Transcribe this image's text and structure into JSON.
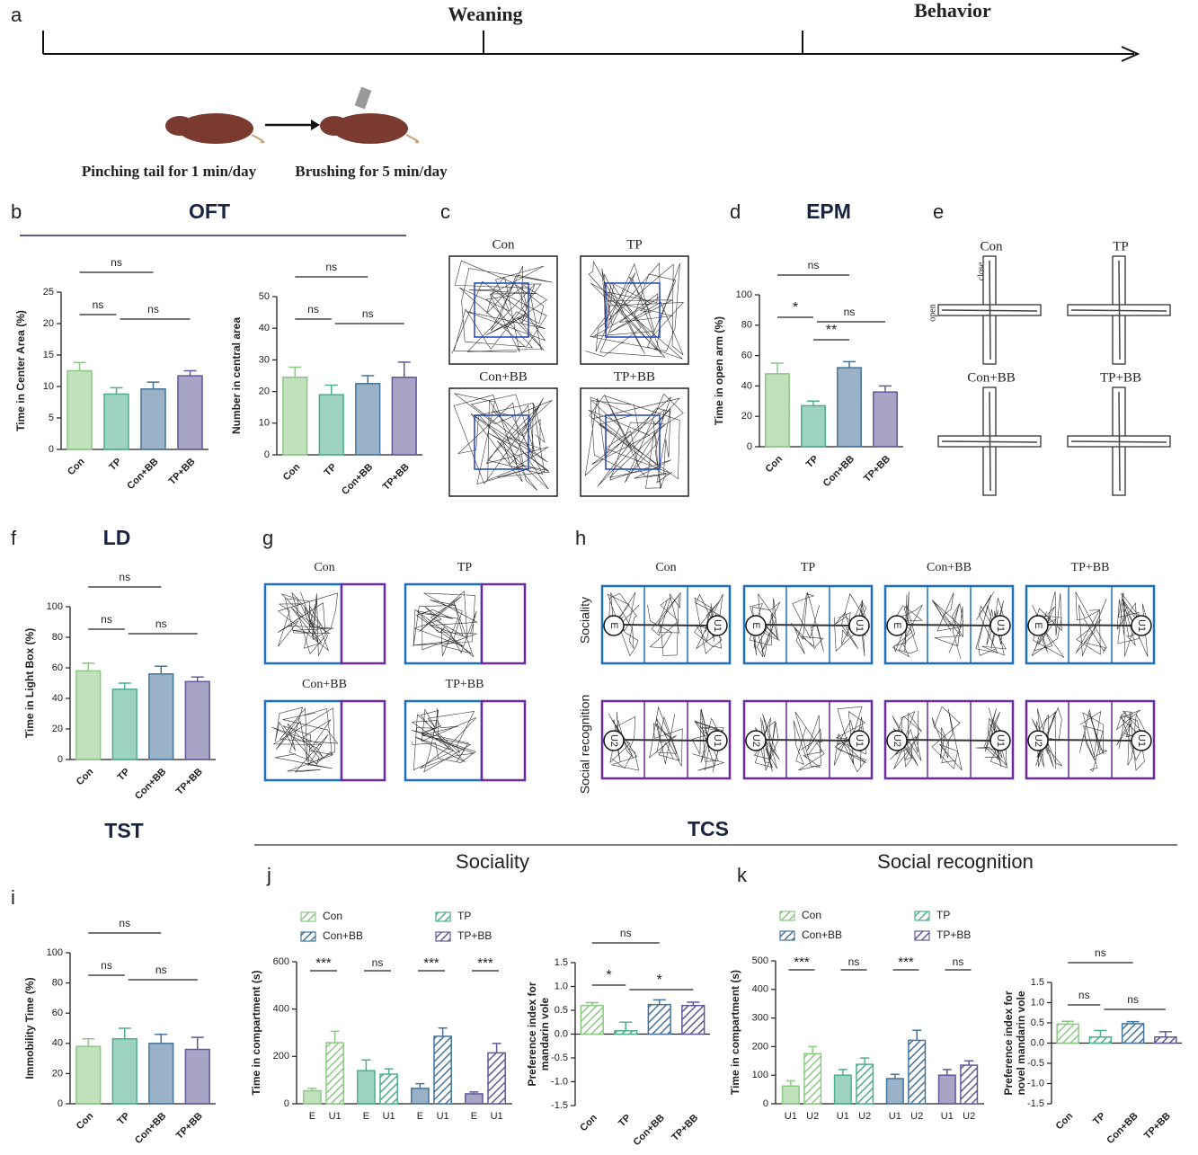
{
  "figure": {
    "panels": [
      "a",
      "b",
      "c",
      "d",
      "e",
      "f",
      "g",
      "h",
      "i",
      "j",
      "k"
    ],
    "timeline": {
      "labels": [
        "Weaning",
        "Behavior"
      ],
      "steps": [
        "Pinching tail for 1 min/day",
        "Brushing for 5 min/day"
      ]
    },
    "sections": {
      "oft": "OFT",
      "epm": "EPM",
      "ld": "LD",
      "tst": "TST",
      "tcs": "TCS",
      "sociality": "Sociality",
      "social_recognition": "Social recognition"
    },
    "groups": [
      "Con",
      "TP",
      "Con+BB",
      "TP+BB"
    ],
    "arms": {
      "close": "close",
      "open": "open"
    },
    "chambers": {
      "e": "E",
      "u1": "U1",
      "u2": "U2"
    }
  },
  "chart_data": [
    {
      "type": "bar",
      "ylabel": [
        "Time in Center Area (%)"
      ],
      "categories": [
        "Con",
        "TP",
        "Con+BB",
        "TP+BB"
      ],
      "values": [
        12.5,
        8.8,
        9.6,
        11.7
      ],
      "errors": [
        1.3,
        1.0,
        1.1,
        0.8
      ],
      "colors": [
        "#8cc884",
        "#4fae8e",
        "#46739a",
        "#5e5a98"
      ],
      "ylim": [
        0,
        25
      ],
      "yticks": [
        0,
        5,
        10,
        15,
        20,
        25
      ],
      "brackets": [
        {
          "text": "ns",
          "from": 0,
          "to": 2
        },
        {
          "text": "ns",
          "from": 0,
          "to": 1
        },
        {
          "text": "ns",
          "from": 1,
          "to": 3
        }
      ]
    },
    {
      "type": "bar",
      "ylabel": [
        "Number in central area"
      ],
      "categories": [
        "Con",
        "TP",
        "Con+BB",
        "TP+BB"
      ],
      "values": [
        24.5,
        19,
        22.5,
        24.5
      ],
      "errors": [
        3.2,
        3.0,
        2.5,
        4.8
      ],
      "colors": [
        "#8cc884",
        "#4fae8e",
        "#46739a",
        "#5e5a98"
      ],
      "ylim": [
        0,
        50
      ],
      "yticks": [
        0,
        10,
        20,
        30,
        40,
        50
      ],
      "brackets": [
        {
          "text": "ns",
          "from": 0,
          "to": 2
        },
        {
          "text": "ns",
          "from": 0,
          "to": 1
        },
        {
          "text": "ns",
          "from": 1,
          "to": 3
        }
      ]
    },
    {
      "type": "bar",
      "ylabel": [
        "Time in open arm (%)"
      ],
      "categories": [
        "Con",
        "TP",
        "Con+BB",
        "TP+BB"
      ],
      "values": [
        48,
        27,
        52,
        36
      ],
      "errors": [
        7,
        3,
        4,
        4
      ],
      "colors": [
        "#8cc884",
        "#4fae8e",
        "#46739a",
        "#5e5a98"
      ],
      "ylim": [
        0,
        100
      ],
      "yticks": [
        0,
        20,
        40,
        60,
        80,
        100
      ],
      "brackets": [
        {
          "text": "ns",
          "from": 0,
          "to": 2
        },
        {
          "text": "*",
          "from": 0,
          "to": 1
        },
        {
          "text": "ns",
          "from": 1,
          "to": 3
        },
        {
          "text": "**",
          "from": 1,
          "to": 2
        }
      ]
    },
    {
      "type": "bar",
      "ylabel": [
        "Time in Light Box (%)"
      ],
      "categories": [
        "Con",
        "TP",
        "Con+BB",
        "TP+BB"
      ],
      "values": [
        58,
        46,
        56,
        51
      ],
      "errors": [
        5,
        4,
        5,
        3
      ],
      "colors": [
        "#8cc884",
        "#4fae8e",
        "#46739a",
        "#5e5a98"
      ],
      "ylim": [
        0,
        100
      ],
      "yticks": [
        0,
        20,
        40,
        60,
        80,
        100
      ],
      "brackets": [
        {
          "text": "ns",
          "from": 0,
          "to": 2
        },
        {
          "text": "ns",
          "from": 0,
          "to": 1
        },
        {
          "text": "ns",
          "from": 1,
          "to": 3
        }
      ]
    },
    {
      "type": "bar",
      "ylabel": [
        "Immobility Time (%)"
      ],
      "categories": [
        "Con",
        "TP",
        "Con+BB",
        "TP+BB"
      ],
      "values": [
        38,
        43,
        40,
        36
      ],
      "errors": [
        5,
        7,
        6,
        8
      ],
      "colors": [
        "#8cc884",
        "#4fae8e",
        "#46739a",
        "#5e5a98"
      ],
      "ylim": [
        0,
        100
      ],
      "yticks": [
        0,
        20,
        40,
        60,
        80,
        100
      ],
      "brackets": [
        {
          "text": "ns",
          "from": 0,
          "to": 2
        },
        {
          "text": "ns",
          "from": 0,
          "to": 1
        },
        {
          "text": "ns",
          "from": 1,
          "to": 3
        }
      ]
    },
    {
      "type": "grouped_bar",
      "ylabel": [
        "Time in compartment (s)"
      ],
      "categories": [
        "E",
        "U1"
      ],
      "series": [
        {
          "name": "Con",
          "color": "#8cc884",
          "values": [
            55,
            258
          ],
          "errors": [
            10,
            48
          ],
          "annotation": "***"
        },
        {
          "name": "TP",
          "color": "#4fae8e",
          "values": [
            140,
            125
          ],
          "errors": [
            45,
            22
          ],
          "annotation": "ns"
        },
        {
          "name": "Con+BB",
          "color": "#46739a",
          "values": [
            65,
            285
          ],
          "errors": [
            20,
            35
          ],
          "annotation": "***"
        },
        {
          "name": "TP+BB",
          "color": "#5e5a98",
          "values": [
            42,
            215
          ],
          "errors": [
            8,
            40
          ],
          "annotation": "***"
        }
      ],
      "ylim": [
        0,
        600
      ],
      "yticks": [
        0,
        200,
        400,
        600
      ]
    },
    {
      "type": "bar",
      "hatch": true,
      "ylabel": [
        "Preference index for",
        "mandarin vole"
      ],
      "categories": [
        "Con",
        "TP",
        "Con+BB",
        "TP+BB"
      ],
      "values": [
        0.6,
        0.07,
        0.62,
        0.6
      ],
      "errors": [
        0.06,
        0.18,
        0.1,
        0.07
      ],
      "colors": [
        "#8cc884",
        "#4fae8e",
        "#46739a",
        "#5e5a98"
      ],
      "ylim": [
        -1.5,
        1.5
      ],
      "yticks": [
        {
          "value": -1.5,
          "label": "-1.5"
        },
        {
          "value": -1,
          "label": "-1.0"
        },
        -0.5,
        {
          "value": 0,
          "label": "0.0"
        },
        0.5,
        {
          "value": 1,
          "label": "1.0"
        },
        1.5
      ],
      "brackets": [
        {
          "text": "ns",
          "from": 0,
          "to": 2
        },
        {
          "text": "*",
          "from": 0,
          "to": 1
        },
        {
          "text": "*",
          "from": 1,
          "to": 3
        }
      ]
    },
    {
      "type": "grouped_bar",
      "ylabel": [
        "Time in compartment (s)"
      ],
      "categories": [
        "U1",
        "U2"
      ],
      "series": [
        {
          "name": "Con",
          "color": "#8cc884",
          "values": [
            62,
            175
          ],
          "errors": [
            18,
            25
          ],
          "annotation": "***"
        },
        {
          "name": "TP",
          "color": "#4fae8e",
          "values": [
            100,
            138
          ],
          "errors": [
            20,
            22
          ],
          "annotation": "ns"
        },
        {
          "name": "Con+BB",
          "color": "#46739a",
          "values": [
            88,
            222
          ],
          "errors": [
            15,
            35
          ],
          "annotation": "***"
        },
        {
          "name": "TP+BB",
          "color": "#5e5a98",
          "values": [
            100,
            135
          ],
          "errors": [
            20,
            15
          ],
          "annotation": "ns"
        }
      ],
      "ylim": [
        0,
        500
      ],
      "yticks": [
        0,
        100,
        200,
        300,
        400,
        500
      ]
    },
    {
      "type": "bar",
      "hatch": true,
      "ylabel": [
        "Preference index for",
        "novel mandarin vole"
      ],
      "categories": [
        "Con",
        "TP",
        "Con+BB",
        "TP+BB"
      ],
      "values": [
        0.47,
        0.15,
        0.48,
        0.15
      ],
      "errors": [
        0.07,
        0.16,
        0.05,
        0.13
      ],
      "colors": [
        "#8cc884",
        "#4fae8e",
        "#46739a",
        "#5e5a98"
      ],
      "ylim": [
        -1.5,
        1.5
      ],
      "yticks": [
        {
          "value": -1.5,
          "label": "-1.5"
        },
        {
          "value": -1,
          "label": "-1.0"
        },
        -0.5,
        {
          "value": 0,
          "label": "0.0"
        },
        0.5,
        {
          "value": 1,
          "label": "1.0"
        },
        1.5
      ],
      "brackets": [
        {
          "text": "ns",
          "from": 0,
          "to": 2
        },
        {
          "text": "ns",
          "from": 0,
          "to": 1
        },
        {
          "text": "ns",
          "from": 1,
          "to": 3
        }
      ]
    }
  ]
}
